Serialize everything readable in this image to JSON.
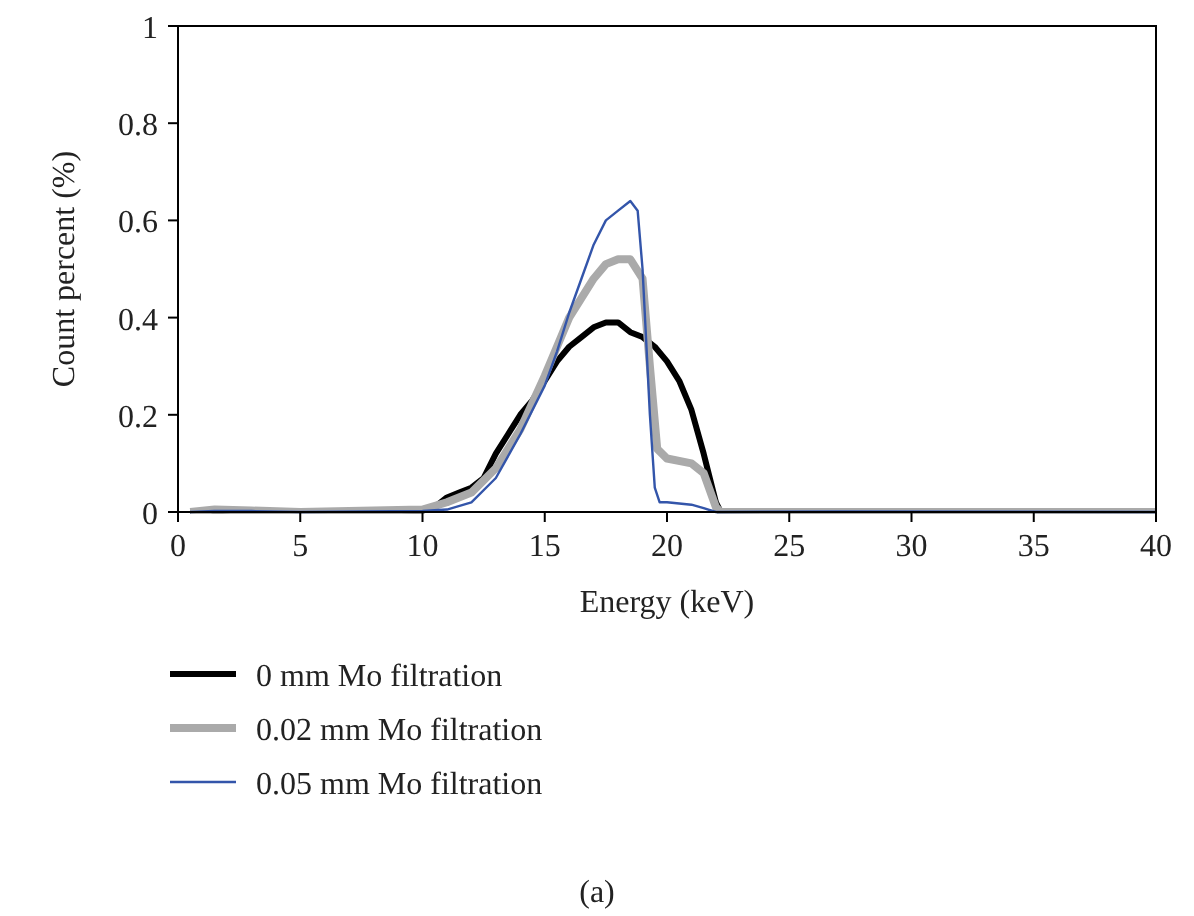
{
  "chart_data": {
    "type": "line",
    "xlabel": "Energy (keV)",
    "ylabel": "Count percent (%)",
    "annotations": [
      "(a)"
    ],
    "xlim": [
      0,
      40
    ],
    "xticks": [
      0,
      5,
      10,
      15,
      20,
      25,
      30,
      35,
      40
    ],
    "ylim": [
      0,
      1
    ],
    "yticks": [
      0,
      0.2,
      0.4,
      0.6,
      0.8,
      1
    ],
    "grid": false,
    "legend": "bottom",
    "marker": "none",
    "line_style": "solid",
    "series": [
      {
        "name": "0 mm Mo filtration",
        "color": "#000000",
        "x": [
          0.5,
          1.5,
          3,
          5,
          10,
          10.5,
          11,
          11.5,
          12,
          12.5,
          13,
          13.5,
          14,
          14.5,
          15,
          15.5,
          16,
          16.5,
          17,
          17.5,
          18,
          18.5,
          19,
          19.5,
          20,
          20.5,
          21,
          21.5,
          22,
          22.2,
          27,
          40
        ],
        "values": [
          0,
          0.003,
          0.002,
          0,
          0.003,
          0.01,
          0.03,
          0.04,
          0.05,
          0.07,
          0.12,
          0.16,
          0.2,
          0.23,
          0.27,
          0.31,
          0.34,
          0.36,
          0.38,
          0.39,
          0.39,
          0.37,
          0.36,
          0.34,
          0.31,
          0.27,
          0.21,
          0.12,
          0.02,
          0,
          0,
          0
        ]
      },
      {
        "name": "0.02 mm Mo filtration",
        "color": "#aaaaaa",
        "x": [
          0.5,
          1.5,
          3,
          5,
          10,
          11,
          12,
          13,
          14,
          15,
          15.5,
          16,
          16.5,
          17,
          17.5,
          18,
          18.5,
          19,
          19.3,
          19.6,
          20,
          21,
          21.5,
          22,
          22.2,
          27,
          40
        ],
        "values": [
          0,
          0.005,
          0.003,
          0,
          0.005,
          0.02,
          0.04,
          0.09,
          0.17,
          0.28,
          0.34,
          0.4,
          0.44,
          0.48,
          0.51,
          0.52,
          0.52,
          0.48,
          0.3,
          0.13,
          0.11,
          0.1,
          0.08,
          0.01,
          0,
          0,
          0
        ]
      },
      {
        "name": "0.05 mm Mo filtration",
        "color": "#3355aa",
        "x": [
          0.5,
          1.5,
          3,
          5,
          10,
          11,
          12,
          13,
          14,
          15,
          15.5,
          16,
          16.5,
          17,
          17.5,
          18,
          18.5,
          18.8,
          19,
          19.3,
          19.5,
          19.7,
          20,
          21,
          21.5,
          22,
          27,
          40
        ],
        "values": [
          0,
          0.002,
          0.002,
          0,
          0.002,
          0.005,
          0.02,
          0.07,
          0.16,
          0.26,
          0.33,
          0.41,
          0.48,
          0.55,
          0.6,
          0.62,
          0.64,
          0.62,
          0.5,
          0.2,
          0.05,
          0.02,
          0.02,
          0.015,
          0.008,
          0,
          0.001,
          0
        ]
      }
    ]
  }
}
